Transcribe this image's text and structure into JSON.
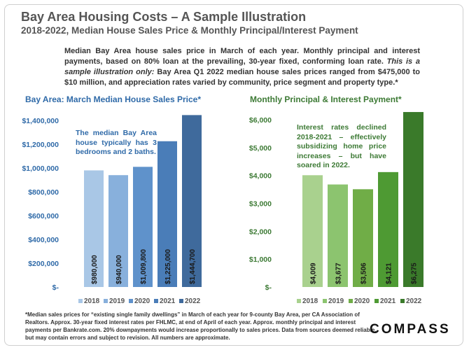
{
  "title": "Bay Area Housing Costs – A Sample Illustration",
  "subtitle": "2018-2022, Median House Sales Price & Monthly Principal/Interest Payment",
  "intro": {
    "part1": "Median Bay Area house sales price in March of each year. Monthly principal and interest payments, based on 80% loan at the prevailing, 30-year fixed, conforming loan rate.",
    "part2": "This is a sample illustration only:",
    "part3": "Bay Area Q1 2022 median house sales prices ranged from $475,000 to $10 million, and appreciation rates varied by community, price segment and property type.*"
  },
  "footnote": "*Median sales prices for “existing single family dwellings” in March of each year for 9-county Bay Area, per CA Association of Realtors. Approx. 30-year fixed interest rates per FHLMC, at end of April of each year. Approx. monthly principal and interest payments per Bankrate.com. 20% downpayments would increase proportionally to sales prices. Data from sources deemed reliable, but may contain errors and subject to revision. All numbers are approximate.",
  "logo": "COMPASS",
  "chart_data": [
    {
      "type": "bar",
      "title": "Bay Area: March Median House Sales Price*",
      "title_color": "#2f6aa8",
      "categories": [
        "2018",
        "2019",
        "2020",
        "2021",
        "2022"
      ],
      "values": [
        980000,
        940000,
        1009800,
        1225000,
        1444700
      ],
      "data_labels": [
        "$980,000",
        "$940,000",
        "$1,009,800",
        "$1,225,000",
        "$1,444,700"
      ],
      "colors": [
        "#a9c7e6",
        "#88b0dc",
        "#5f92cb",
        "#4a7db8",
        "#3f6a9c"
      ],
      "ylim": [
        0,
        1400000
      ],
      "yticks": [
        0,
        200000,
        400000,
        600000,
        800000,
        1000000,
        1200000,
        1400000
      ],
      "ytick_labels": [
        "$-",
        "$200,000",
        "$400,000",
        "$600,000",
        "$800,000",
        "$1,000,000",
        "$1,200,000",
        "$1,400,000"
      ],
      "tick_color": "#2f6aa8",
      "legend": "bottom",
      "grid": false,
      "annotation": "The median Bay Area house typically has 3 bedrooms and 2 baths."
    },
    {
      "type": "bar",
      "title": "Monthly Principal & Interest Payment*",
      "title_color": "#3d7a35",
      "categories": [
        "2018",
        "2019",
        "2020",
        "2021",
        "2022"
      ],
      "values": [
        4009,
        3677,
        3506,
        4121,
        6275
      ],
      "data_labels": [
        "$4,009",
        "$3,677",
        "$3,506",
        "$4,121",
        "$6,275"
      ],
      "colors": [
        "#a9d18e",
        "#8cc46f",
        "#70ad47",
        "#4e9a33",
        "#3a7a2a"
      ],
      "ylim": [
        0,
        6000
      ],
      "yticks": [
        0,
        1000,
        2000,
        3000,
        4000,
        5000,
        6000
      ],
      "ytick_labels": [
        "$-",
        "$1,000",
        "$2,000",
        "$3,000",
        "$4,000",
        "$5,000",
        "$6,000"
      ],
      "tick_color": "#3d7a35",
      "legend": "bottom",
      "grid": false,
      "annotation": "Interest rates declined 2018-2021 – effectively subsidizing home price increases – but have soared in 2022."
    }
  ]
}
